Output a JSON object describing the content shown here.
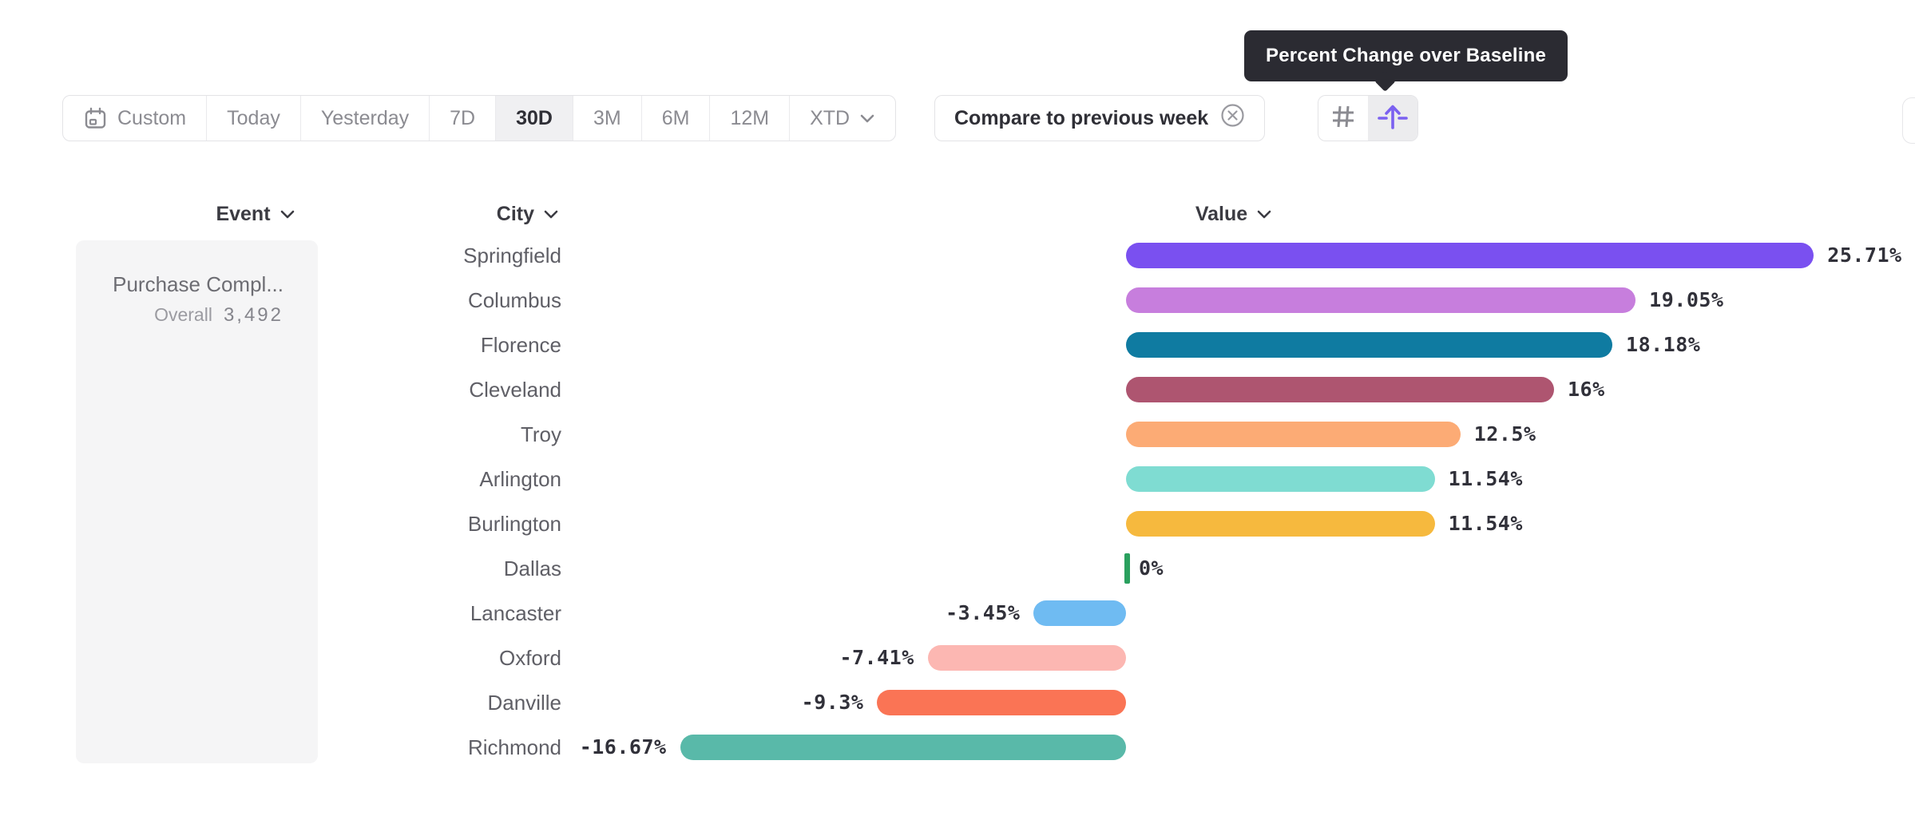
{
  "tooltip": {
    "text": "Percent Change over Baseline"
  },
  "toolbar": {
    "date_ranges": [
      {
        "label": "Custom",
        "icon": "calendar-icon",
        "selected": false,
        "chevron": false
      },
      {
        "label": "Today",
        "selected": false,
        "chevron": false
      },
      {
        "label": "Yesterday",
        "selected": false,
        "chevron": false
      },
      {
        "label": "7D",
        "selected": false,
        "chevron": false
      },
      {
        "label": "30D",
        "selected": true,
        "chevron": false
      },
      {
        "label": "3M",
        "selected": false,
        "chevron": false
      },
      {
        "label": "6M",
        "selected": false,
        "chevron": false
      },
      {
        "label": "12M",
        "selected": false,
        "chevron": false
      },
      {
        "label": "XTD",
        "selected": false,
        "chevron": true
      }
    ],
    "compare_button": {
      "label": "Compare to previous week",
      "icon": "close-circle-icon"
    },
    "view_toggle": [
      {
        "name": "grid-view",
        "icon": "grid-icon",
        "selected": false,
        "color": "#8b8b91"
      },
      {
        "name": "percent-change-over-baseline",
        "icon": "baseline-arrow-icon",
        "selected": true,
        "color": "#7b61f0"
      }
    ]
  },
  "columns": [
    {
      "label": "Event"
    },
    {
      "label": "City"
    },
    {
      "label": "Value"
    }
  ],
  "event_panel": {
    "event_name": "Purchase Compl...",
    "metric_label": "Overall",
    "metric_value": "3,492"
  },
  "chart_data": {
    "type": "bar",
    "orientation": "horizontal",
    "title": "Percent Change over Baseline",
    "unit": "%",
    "baseline": 0,
    "legend": false,
    "grid": false,
    "categories": [
      "Springfield",
      "Columbus",
      "Florence",
      "Cleveland",
      "Troy",
      "Arlington",
      "Burlington",
      "Dallas",
      "Lancaster",
      "Oxford",
      "Danville",
      "Richmond"
    ],
    "values": [
      25.71,
      19.05,
      18.18,
      16,
      12.5,
      11.54,
      11.54,
      0,
      -3.45,
      -7.41,
      -9.3,
      -16.67
    ],
    "value_labels": [
      "25.71%",
      "19.05%",
      "18.18%",
      "16%",
      "12.5%",
      "11.54%",
      "11.54%",
      "0%",
      "-3.45%",
      "-7.41%",
      "-9.3%",
      "-16.67%"
    ],
    "colors": [
      "#7a50f0",
      "#c77edd",
      "#0f7ba1",
      "#ae5570",
      "#fcab75",
      "#7fdcd2",
      "#f6b93e",
      "#2aa05e",
      "#6fbbf2",
      "#fcb7b2",
      "#fa7455",
      "#59b9a9"
    ],
    "xlim": [
      -20,
      27
    ]
  },
  "ui_colors": {
    "accent": "#7b61f0",
    "tooltip_bg": "#2b2b32",
    "border": "#e3e3e6",
    "selected_segment_bg": "#f0f0f2",
    "panel_bg": "#f5f5f6",
    "zero_bar": "#2aa05e"
  }
}
